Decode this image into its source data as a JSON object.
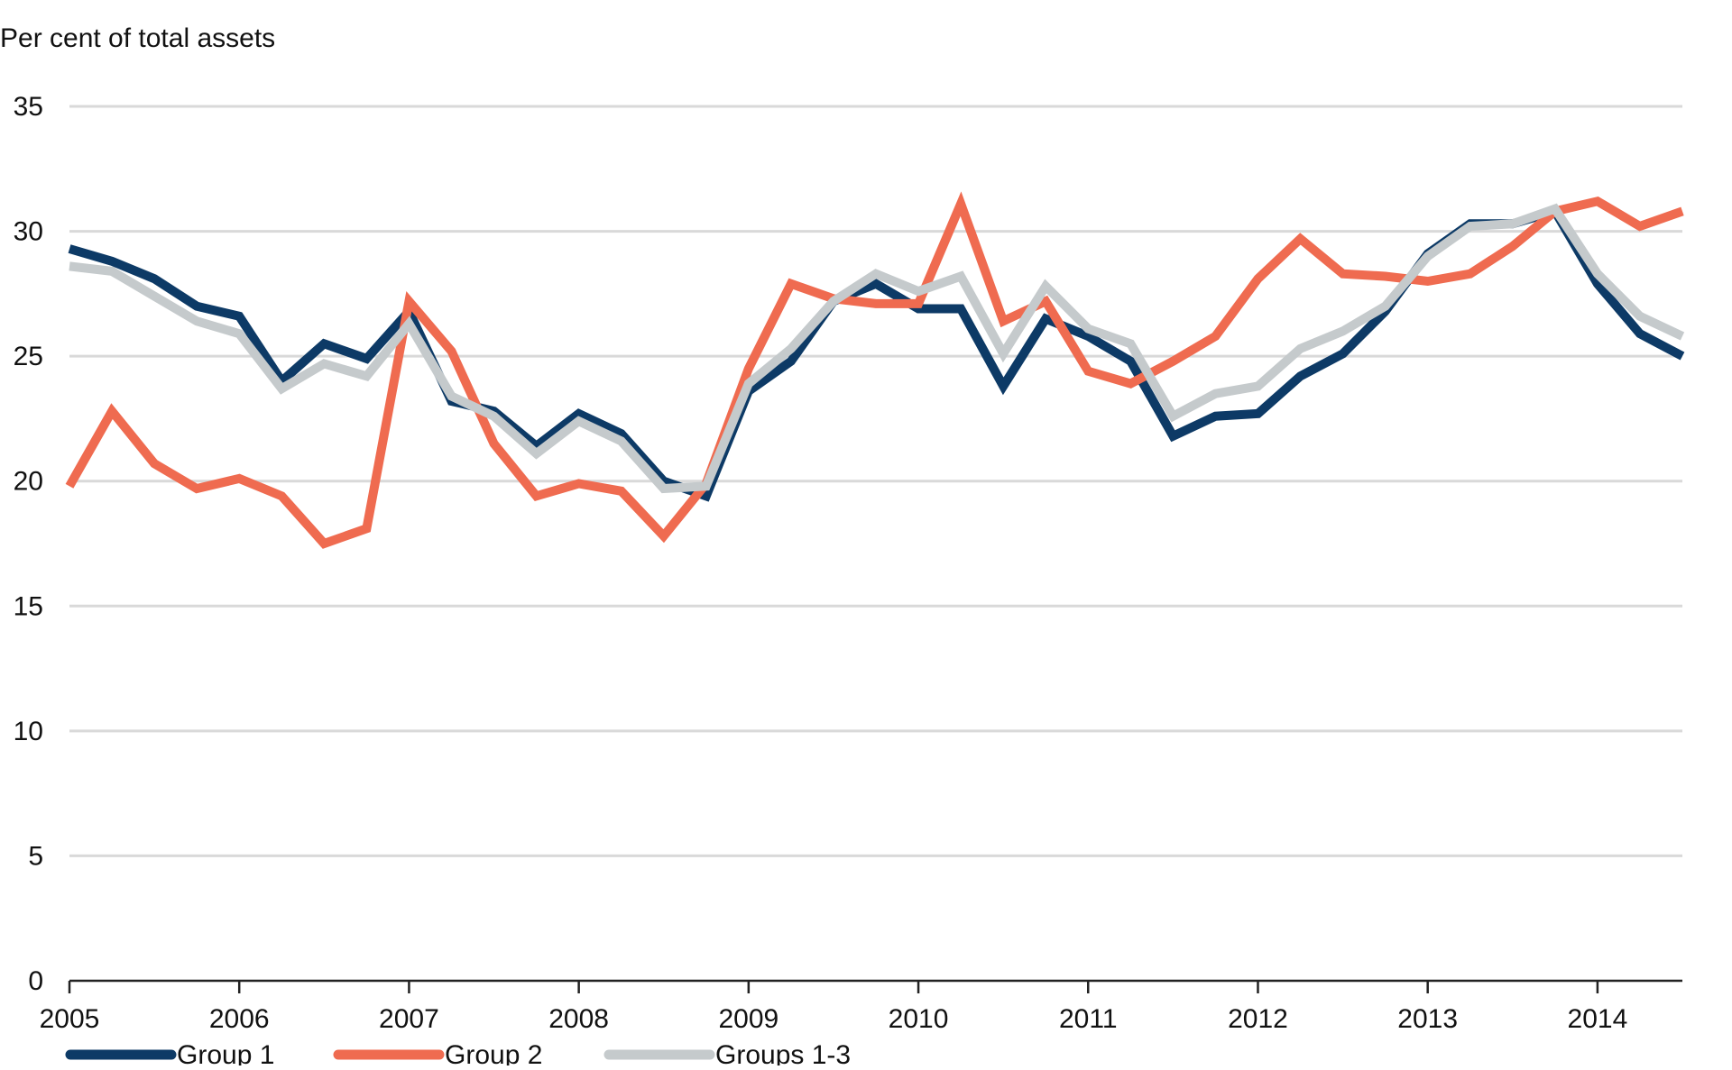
{
  "chart_data": {
    "type": "line",
    "title": "",
    "ylabel": "Per cent of total assets",
    "xlabel": "",
    "ylim": [
      0,
      35
    ],
    "yticks": [
      "0",
      "5",
      "10",
      "15",
      "20",
      "25",
      "30",
      "35"
    ],
    "xlim": [
      2005,
      2014.5
    ],
    "xticks": [
      "2005",
      "2006",
      "2007",
      "2008",
      "2009",
      "2010",
      "2011",
      "2012",
      "2013",
      "2014"
    ],
    "x": [
      2005.0,
      2005.25,
      2005.5,
      2005.75,
      2006.0,
      2006.25,
      2006.5,
      2006.75,
      2007.0,
      2007.25,
      2007.5,
      2007.75,
      2008.0,
      2008.25,
      2008.5,
      2008.75,
      2009.0,
      2009.25,
      2009.5,
      2009.75,
      2010.0,
      2010.25,
      2010.5,
      2010.75,
      2011.0,
      2011.25,
      2011.5,
      2011.75,
      2012.0,
      2012.25,
      2012.5,
      2012.75,
      2013.0,
      2013.25,
      2013.5,
      2013.75,
      2014.0,
      2014.25,
      2014.5
    ],
    "grid": true,
    "legend_position": "bottom-left",
    "series": [
      {
        "name": "Group 1",
        "color": "#0d3a66",
        "values": [
          29.3,
          28.8,
          28.1,
          27.0,
          26.6,
          24.0,
          25.5,
          24.9,
          26.8,
          23.2,
          22.8,
          21.4,
          22.7,
          21.9,
          20.0,
          19.4,
          23.6,
          24.8,
          27.2,
          27.9,
          26.9,
          26.9,
          23.8,
          26.5,
          25.8,
          24.8,
          21.8,
          22.6,
          22.7,
          24.2,
          25.1,
          26.8,
          29.1,
          30.3,
          30.3,
          30.8,
          27.9,
          25.9,
          25.0
        ]
      },
      {
        "name": "Group 2",
        "color": "#ef6b50",
        "values": [
          19.8,
          22.8,
          20.7,
          19.7,
          20.1,
          19.4,
          17.5,
          18.1,
          27.2,
          25.2,
          21.5,
          19.4,
          19.9,
          19.6,
          17.8,
          19.9,
          24.5,
          27.9,
          27.3,
          27.1,
          27.1,
          31.1,
          26.4,
          27.2,
          24.4,
          23.9,
          24.8,
          25.8,
          28.1,
          29.7,
          28.3,
          28.2,
          28.0,
          28.3,
          29.4,
          30.8,
          31.2,
          30.2,
          30.8
        ]
      },
      {
        "name": "Groups 1-3",
        "color": "#c5cacc",
        "values": [
          28.6,
          28.4,
          27.4,
          26.4,
          25.9,
          23.7,
          24.7,
          24.2,
          26.3,
          23.4,
          22.6,
          21.1,
          22.4,
          21.6,
          19.7,
          19.8,
          23.9,
          25.3,
          27.2,
          28.3,
          27.6,
          28.2,
          25.1,
          27.8,
          26.1,
          25.5,
          22.6,
          23.5,
          23.8,
          25.3,
          26.0,
          27.0,
          29.0,
          30.2,
          30.3,
          30.9,
          28.3,
          26.6,
          25.8
        ]
      }
    ]
  }
}
